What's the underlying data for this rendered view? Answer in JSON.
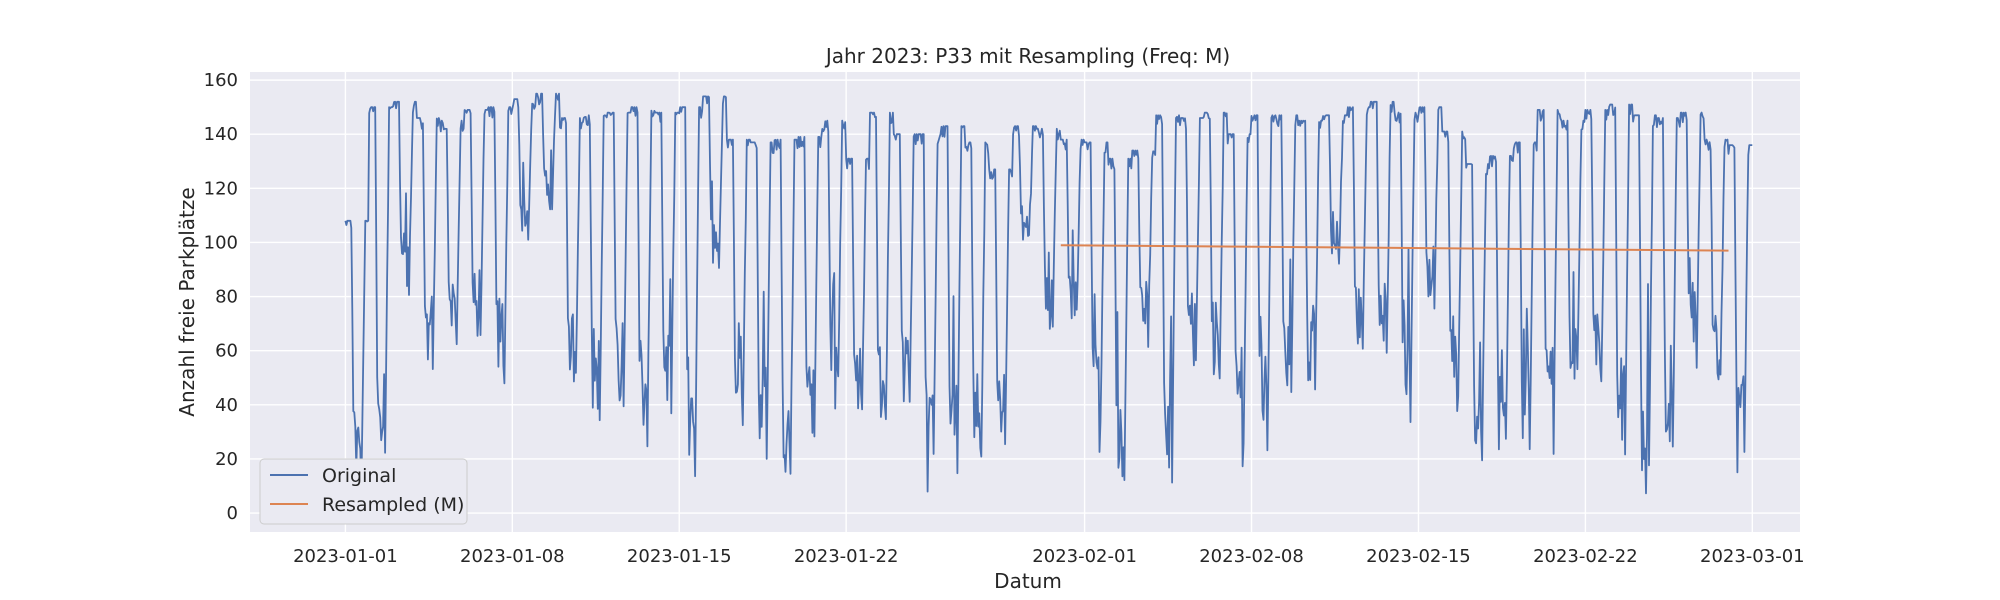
{
  "chart_data": {
    "type": "line",
    "title": "Jahr 2023: P33 mit Resampling (Freq: M)",
    "xlabel": "Datum",
    "ylabel": "Anzahl freie Parkplätze",
    "x_range": [
      "2022-12-28",
      "2023-03-03"
    ],
    "ylim": [
      -7,
      163
    ],
    "y_ticks": [
      0,
      20,
      40,
      60,
      80,
      100,
      120,
      140,
      160
    ],
    "x_ticks": [
      "2023-01-01",
      "2023-01-08",
      "2023-01-15",
      "2023-01-22",
      "2023-02-01",
      "2023-02-08",
      "2023-02-15",
      "2023-02-22",
      "2023-03-01"
    ],
    "grid": true,
    "legend_position": "lower-left",
    "background": "#eaeaf2",
    "series": [
      {
        "name": "Original",
        "color": "#4c72b0",
        "description_of_shape": "daily oscillation between night maxima and daytime minima",
        "daily_max": [
          [
            "2023-01-01",
            108
          ],
          [
            "2023-01-02",
            150
          ],
          [
            "2023-01-03",
            152
          ],
          [
            "2023-01-04",
            146
          ],
          [
            "2023-01-05",
            145
          ],
          [
            "2023-01-06",
            149
          ],
          [
            "2023-01-07",
            150
          ],
          [
            "2023-01-08",
            153
          ],
          [
            "2023-01-09",
            155
          ],
          [
            "2023-01-10",
            146
          ],
          [
            "2023-01-11",
            147
          ],
          [
            "2023-01-12",
            148
          ],
          [
            "2023-01-13",
            150
          ],
          [
            "2023-01-14",
            148
          ],
          [
            "2023-01-15",
            150
          ],
          [
            "2023-01-16",
            154
          ],
          [
            "2023-01-17",
            138
          ],
          [
            "2023-01-18",
            137
          ],
          [
            "2023-01-19",
            138
          ],
          [
            "2023-01-20",
            139
          ],
          [
            "2023-01-21",
            145
          ],
          [
            "2023-01-22",
            131
          ],
          [
            "2023-01-23",
            148
          ],
          [
            "2023-01-24",
            140
          ],
          [
            "2023-01-25",
            140
          ],
          [
            "2023-01-26",
            143
          ],
          [
            "2023-01-27",
            137
          ],
          [
            "2023-01-28",
            127
          ],
          [
            "2023-01-29",
            143
          ],
          [
            "2023-01-30",
            142
          ],
          [
            "2023-01-31",
            138
          ],
          [
            "2023-02-01",
            137
          ],
          [
            "2023-02-02",
            131
          ],
          [
            "2023-02-03",
            134
          ],
          [
            "2023-02-04",
            147
          ],
          [
            "2023-02-05",
            146
          ],
          [
            "2023-02-06",
            148
          ],
          [
            "2023-02-07",
            140
          ],
          [
            "2023-02-08",
            147
          ],
          [
            "2023-02-09",
            147
          ],
          [
            "2023-02-10",
            145
          ],
          [
            "2023-02-11",
            147
          ],
          [
            "2023-02-12",
            150
          ],
          [
            "2023-02-13",
            152
          ],
          [
            "2023-02-14",
            148
          ],
          [
            "2023-02-15",
            150
          ],
          [
            "2023-02-16",
            141
          ],
          [
            "2023-02-17",
            129
          ],
          [
            "2023-02-18",
            132
          ],
          [
            "2023-02-19",
            137
          ],
          [
            "2023-02-20",
            149
          ],
          [
            "2023-02-21",
            145
          ],
          [
            "2023-02-22",
            149
          ],
          [
            "2023-02-23",
            151
          ],
          [
            "2023-02-24",
            147
          ],
          [
            "2023-02-25",
            146
          ],
          [
            "2023-02-26",
            148
          ],
          [
            "2023-02-27",
            138
          ],
          [
            "2023-02-28",
            136
          ]
        ],
        "daily_min": [
          [
            "2023-01-01",
            0
          ],
          [
            "2023-01-02",
            5
          ],
          [
            "2023-01-03",
            75
          ],
          [
            "2023-01-04",
            40
          ],
          [
            "2023-01-05",
            53
          ],
          [
            "2023-01-06",
            54
          ],
          [
            "2023-01-07",
            38
          ],
          [
            "2023-01-08",
            95
          ],
          [
            "2023-01-09",
            108
          ],
          [
            "2023-01-10",
            40
          ],
          [
            "2023-01-11",
            22
          ],
          [
            "2023-01-12",
            28
          ],
          [
            "2023-01-13",
            15
          ],
          [
            "2023-01-14",
            28
          ],
          [
            "2023-01-15",
            0
          ],
          [
            "2023-01-16",
            80
          ],
          [
            "2023-01-17",
            22
          ],
          [
            "2023-01-18",
            5
          ],
          [
            "2023-01-19",
            0
          ],
          [
            "2023-01-20",
            14
          ],
          [
            "2023-01-21",
            37
          ],
          [
            "2023-01-22",
            25
          ],
          [
            "2023-01-23",
            22
          ],
          [
            "2023-01-24",
            26
          ],
          [
            "2023-01-25",
            5
          ],
          [
            "2023-01-26",
            2
          ],
          [
            "2023-01-27",
            5
          ],
          [
            "2023-01-28",
            12
          ],
          [
            "2023-01-29",
            95
          ],
          [
            "2023-01-30",
            65
          ],
          [
            "2023-01-31",
            64
          ],
          [
            "2023-02-01",
            20
          ],
          [
            "2023-02-02",
            0
          ],
          [
            "2023-02-03",
            55
          ],
          [
            "2023-02-04",
            0
          ],
          [
            "2023-02-05",
            45
          ],
          [
            "2023-02-06",
            36
          ],
          [
            "2023-02-07",
            16
          ],
          [
            "2023-02-08",
            10
          ],
          [
            "2023-02-09",
            35
          ],
          [
            "2023-02-10",
            38
          ],
          [
            "2023-02-11",
            88
          ],
          [
            "2023-02-12",
            55
          ],
          [
            "2023-02-13",
            45
          ],
          [
            "2023-02-14",
            25
          ],
          [
            "2023-02-15",
            70
          ],
          [
            "2023-02-16",
            30
          ],
          [
            "2023-02-17",
            5
          ],
          [
            "2023-02-18",
            15
          ],
          [
            "2023-02-19",
            10
          ],
          [
            "2023-02-20",
            12
          ],
          [
            "2023-02-21",
            40
          ],
          [
            "2023-02-22",
            35
          ],
          [
            "2023-02-23",
            5
          ],
          [
            "2023-02-24",
            0
          ],
          [
            "2023-02-25",
            10
          ],
          [
            "2023-02-26",
            45
          ],
          [
            "2023-02-27",
            40
          ],
          [
            "2023-02-28",
            10
          ]
        ],
        "end_value": [
          "2023-03-01",
          136
        ]
      },
      {
        "name": "Resampled (M)",
        "color": "#dd8452",
        "points": [
          [
            "2023-01-31",
            99
          ],
          [
            "2023-02-28",
            97
          ]
        ]
      }
    ]
  }
}
